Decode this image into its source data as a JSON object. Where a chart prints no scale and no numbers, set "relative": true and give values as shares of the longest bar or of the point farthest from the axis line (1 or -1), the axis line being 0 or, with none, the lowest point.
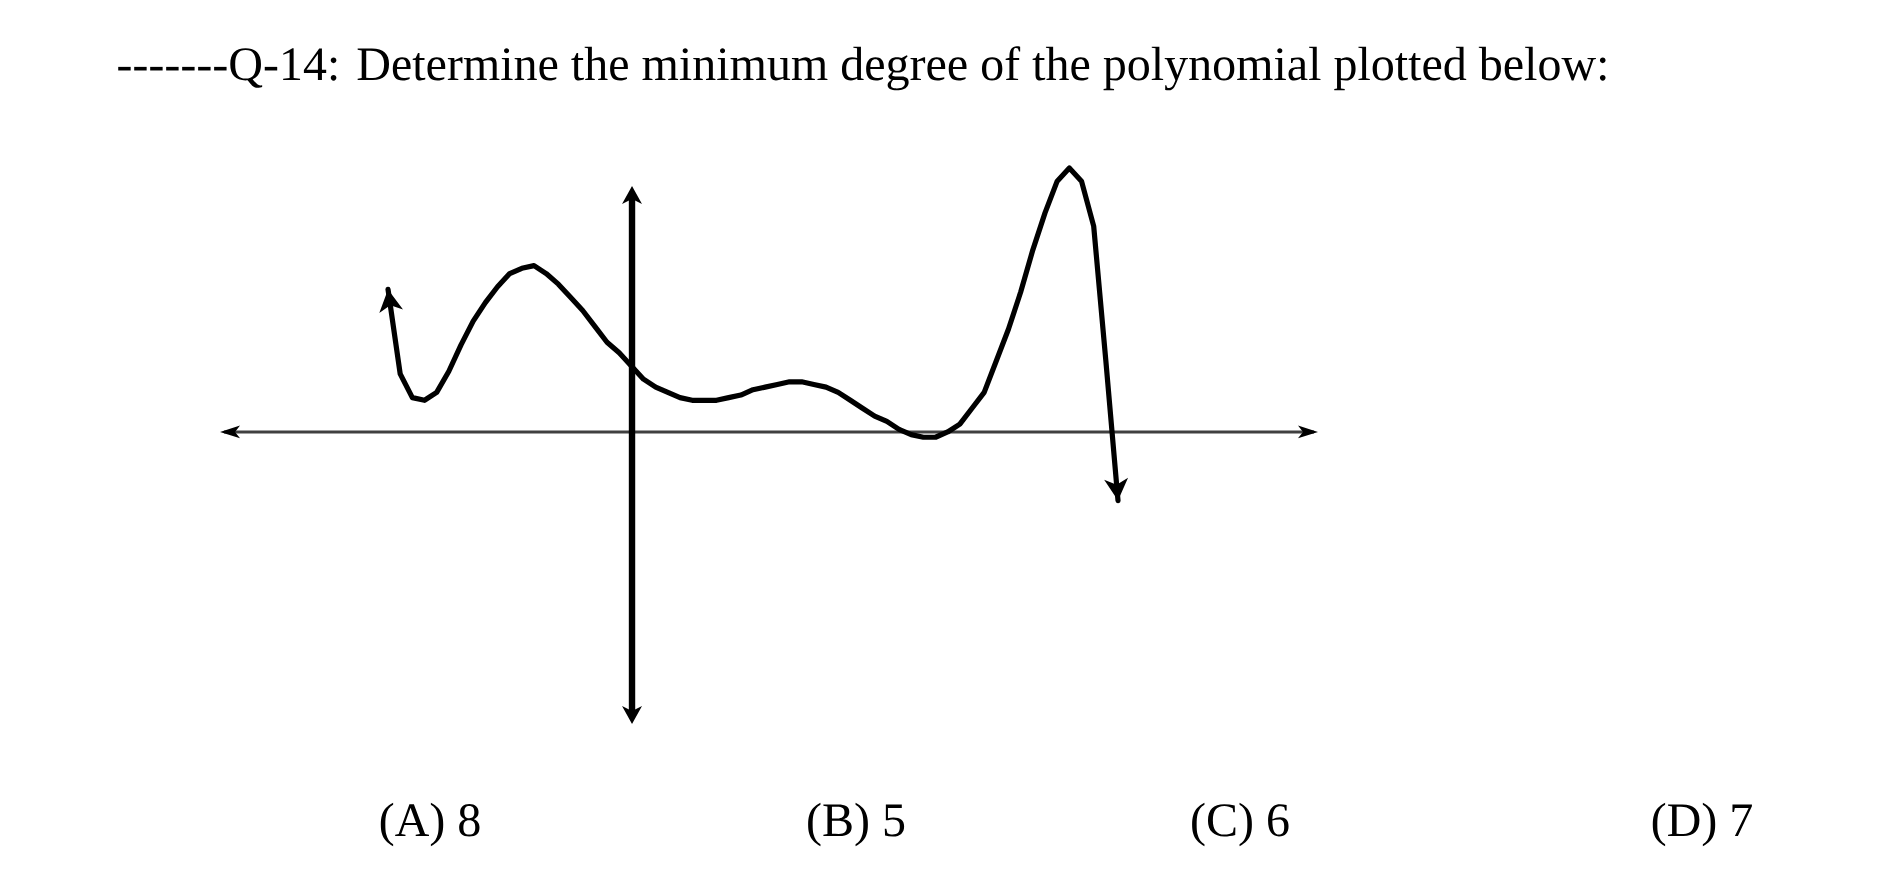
{
  "chart_data": {
    "type": "line",
    "title": "-------Q-14: Determine the minimum degree of the polynomial plotted below:",
    "categories": [
      null,
      null,
      null,
      null,
      null,
      null,
      null,
      null,
      null,
      null,
      null,
      null,
      null,
      null,
      null,
      null,
      null,
      null,
      null,
      null,
      null,
      null,
      null,
      null,
      null,
      null,
      null,
      null,
      null,
      null,
      null,
      null,
      null,
      null,
      null,
      null,
      null,
      null,
      null,
      null,
      null,
      null,
      null,
      null,
      null,
      null,
      null,
      null,
      null,
      null,
      null,
      null,
      null,
      null,
      null,
      null,
      null,
      null,
      null,
      null,
      null
    ],
    "values": [
      0.54,
      0.22,
      0.13,
      0.12,
      0.15,
      0.23,
      0.33,
      0.42,
      0.49,
      0.55,
      0.6,
      0.62,
      0.63,
      0.6,
      0.56,
      0.51,
      0.46,
      0.4,
      0.34,
      0.3,
      0.25,
      0.2,
      0.17,
      0.15,
      0.13,
      0.12,
      0.12,
      0.12,
      0.13,
      0.14,
      0.16,
      0.17,
      0.18,
      0.19,
      0.19,
      0.18,
      0.17,
      0.15,
      0.12,
      0.09,
      0.06,
      0.04,
      0.01,
      -0.01,
      -0.02,
      -0.02,
      0.0,
      0.03,
      0.09,
      0.15,
      0.27,
      0.39,
      0.53,
      0.69,
      0.83,
      0.95,
      1.0,
      0.95,
      0.78,
      0.27,
      -0.26
    ],
    "color": "#000000",
    "relative": true,
    "annotations": [
      "(A) 8",
      "(B) 5",
      "(C) 6",
      "(D) 7"
    ]
  }
}
